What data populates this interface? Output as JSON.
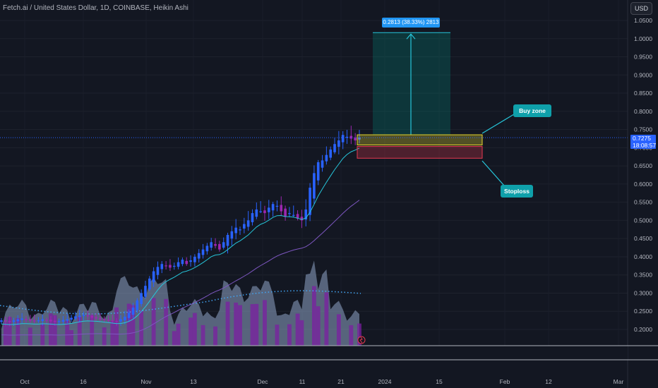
{
  "header": {
    "symbol_title": "Fetch.ai / United States Dollar, 1D, COINBASE, Heikin Ashi",
    "currency_button": "USD"
  },
  "price_scale": {
    "ticks": [
      "1.0500",
      "1.0000",
      "0.9500",
      "0.9000",
      "0.8500",
      "0.8000",
      "0.7500",
      "0.7000",
      "0.6500",
      "0.6000",
      "0.5500",
      "0.5000",
      "0.4500",
      "0.4000",
      "0.3500",
      "0.3000",
      "0.2500",
      "0.2000"
    ],
    "current_price": "0.7275",
    "countdown": "18:08:57"
  },
  "time_scale": {
    "ticks": [
      "Oct",
      "16",
      "Nov",
      "13",
      "Dec",
      "11",
      "21",
      "2024",
      "15",
      "Feb",
      "12",
      "Mar"
    ]
  },
  "drawings": {
    "measure_label": "0.2813 (38.33%) 2813",
    "buy_zone_label": "Buy zone",
    "stoploss_label": "Stoploss"
  },
  "colors": {
    "background": "#131722",
    "candle_up": "#2962ff",
    "candle_down": "#9c27b0",
    "ma_fast": "#26c6da",
    "ma_slow": "#7e57c2",
    "buy_zone": "#e6d52e",
    "stoploss": "#e53950",
    "callout": "#0fa0aa",
    "price_tag": "#2962ff"
  },
  "chart_data": {
    "type": "candlestick",
    "title": "Fetch.ai / United States Dollar, 1D, COINBASE, Heikin Ashi",
    "y_range": [
      0.17,
      1.08
    ],
    "y_scale": "linear",
    "x_ticks": [
      "Oct",
      "16",
      "Nov",
      "13",
      "Dec",
      "11",
      "21",
      "2024",
      "15",
      "Feb",
      "12",
      "Mar"
    ],
    "closes": [
      0.225,
      0.222,
      0.22,
      0.225,
      0.228,
      0.23,
      0.226,
      0.224,
      0.222,
      0.225,
      0.228,
      0.226,
      0.222,
      0.22,
      0.223,
      0.226,
      0.228,
      0.232,
      0.236,
      0.238,
      0.24,
      0.236,
      0.232,
      0.23,
      0.228,
      0.226,
      0.224,
      0.222,
      0.222,
      0.228,
      0.235,
      0.246,
      0.26,
      0.28,
      0.3,
      0.32,
      0.34,
      0.36,
      0.372,
      0.38,
      0.375,
      0.37,
      0.375,
      0.385,
      0.392,
      0.38,
      0.39,
      0.4,
      0.41,
      0.42,
      0.43,
      0.44,
      0.43,
      0.42,
      0.44,
      0.46,
      0.47,
      0.48,
      0.475,
      0.49,
      0.5,
      0.52,
      0.53,
      0.525,
      0.52,
      0.535,
      0.545,
      0.54,
      0.525,
      0.51,
      0.52,
      0.515,
      0.505,
      0.5,
      0.53,
      0.59,
      0.63,
      0.66,
      0.665,
      0.68,
      0.695,
      0.71,
      0.72,
      0.735,
      0.73,
      0.725,
      0.72,
      0.7275
    ],
    "upper_wick_extremes": {
      "high": 0.795
    },
    "moving_averages": [
      {
        "color": "#26c6da",
        "end_value": 0.695
      },
      {
        "color": "#7e57c2",
        "end_value": 0.565
      }
    ],
    "current_price": 0.7275,
    "long_position": {
      "entry_zone": [
        0.7075,
        0.7355
      ],
      "stop_zone": [
        0.671,
        0.7035
      ],
      "target": 1.0165,
      "target_change": "0.2813 (38.33%) 2813"
    },
    "volume_profile": "area with dotted moving average"
  }
}
